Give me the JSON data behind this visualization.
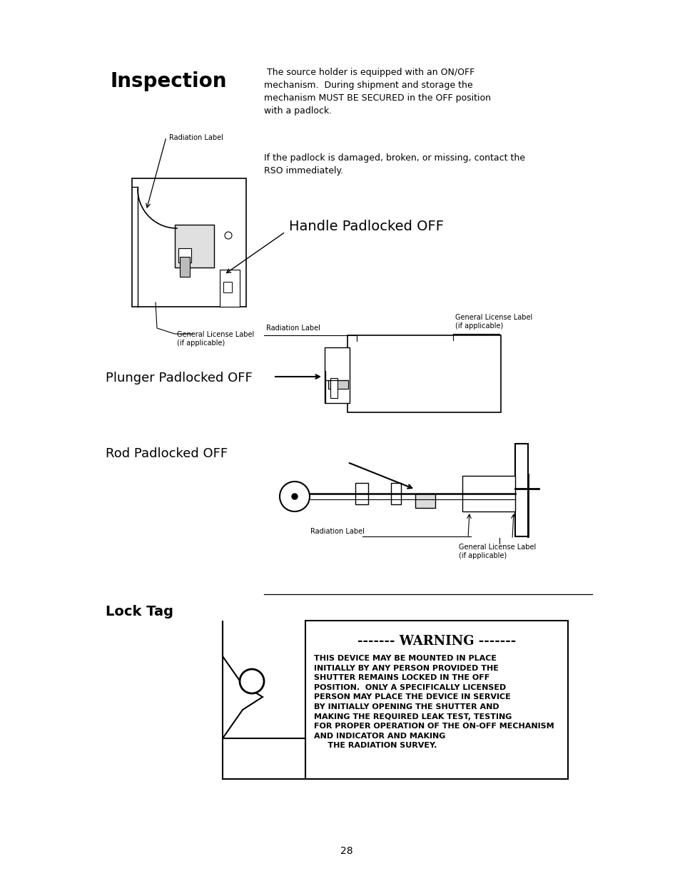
{
  "bg_color": "#ffffff",
  "page_number": "28",
  "title": "Inspection",
  "title_fontsize": 20,
  "body_text_1": " The source holder is equipped with an ON/OFF\nmechanism.  During shipment and storage the\nmechanism MUST BE SECURED in the OFF position\nwith a padlock.",
  "body_text_2": "If the padlock is damaged, broken, or missing, contact the\nRSO immediately.",
  "handle_label": "Handle Padlocked OFF",
  "plunger_label": "Plunger Padlocked OFF",
  "rod_label": "Rod Padlocked OFF",
  "lock_tag_label": "Lock Tag",
  "radiation_label_1": "Radiation Label",
  "general_license_1": "General License Label\n(if applicable)",
  "radiation_label_2": "Radiation Label",
  "general_license_2": "General License Label\n(if applicable)",
  "radiation_label_3": "Radiation Label",
  "general_license_3": "General License Label\n(if applicable)",
  "warning_title": "------- WARNING -------",
  "warning_body": "THIS DEVICE MAY BE MOUNTED IN PLACE\nINITIALLY BY ANY PERSON PROVIDED THE\nSHUTTER REMAINS LOCKED IN THE OFF\nPOSITION.  ONLY A SPECIFICALLY LICENSED\nPERSON MAY PLACE THE DEVICE IN SERVICE\nBY INITIALLY OPENING THE SHUTTER AND\nMAKING THE REQUIRED LEAK TEST, TESTING\nFOR PROPER OPERATION OF THE ON-OFF MECHANISM\nAND INDICATOR AND MAKING\n     THE RADIATION SURVEY.",
  "small_font": 7,
  "body_font": 9,
  "label_font": 8.5,
  "handle_font": 14,
  "section_font": 13
}
